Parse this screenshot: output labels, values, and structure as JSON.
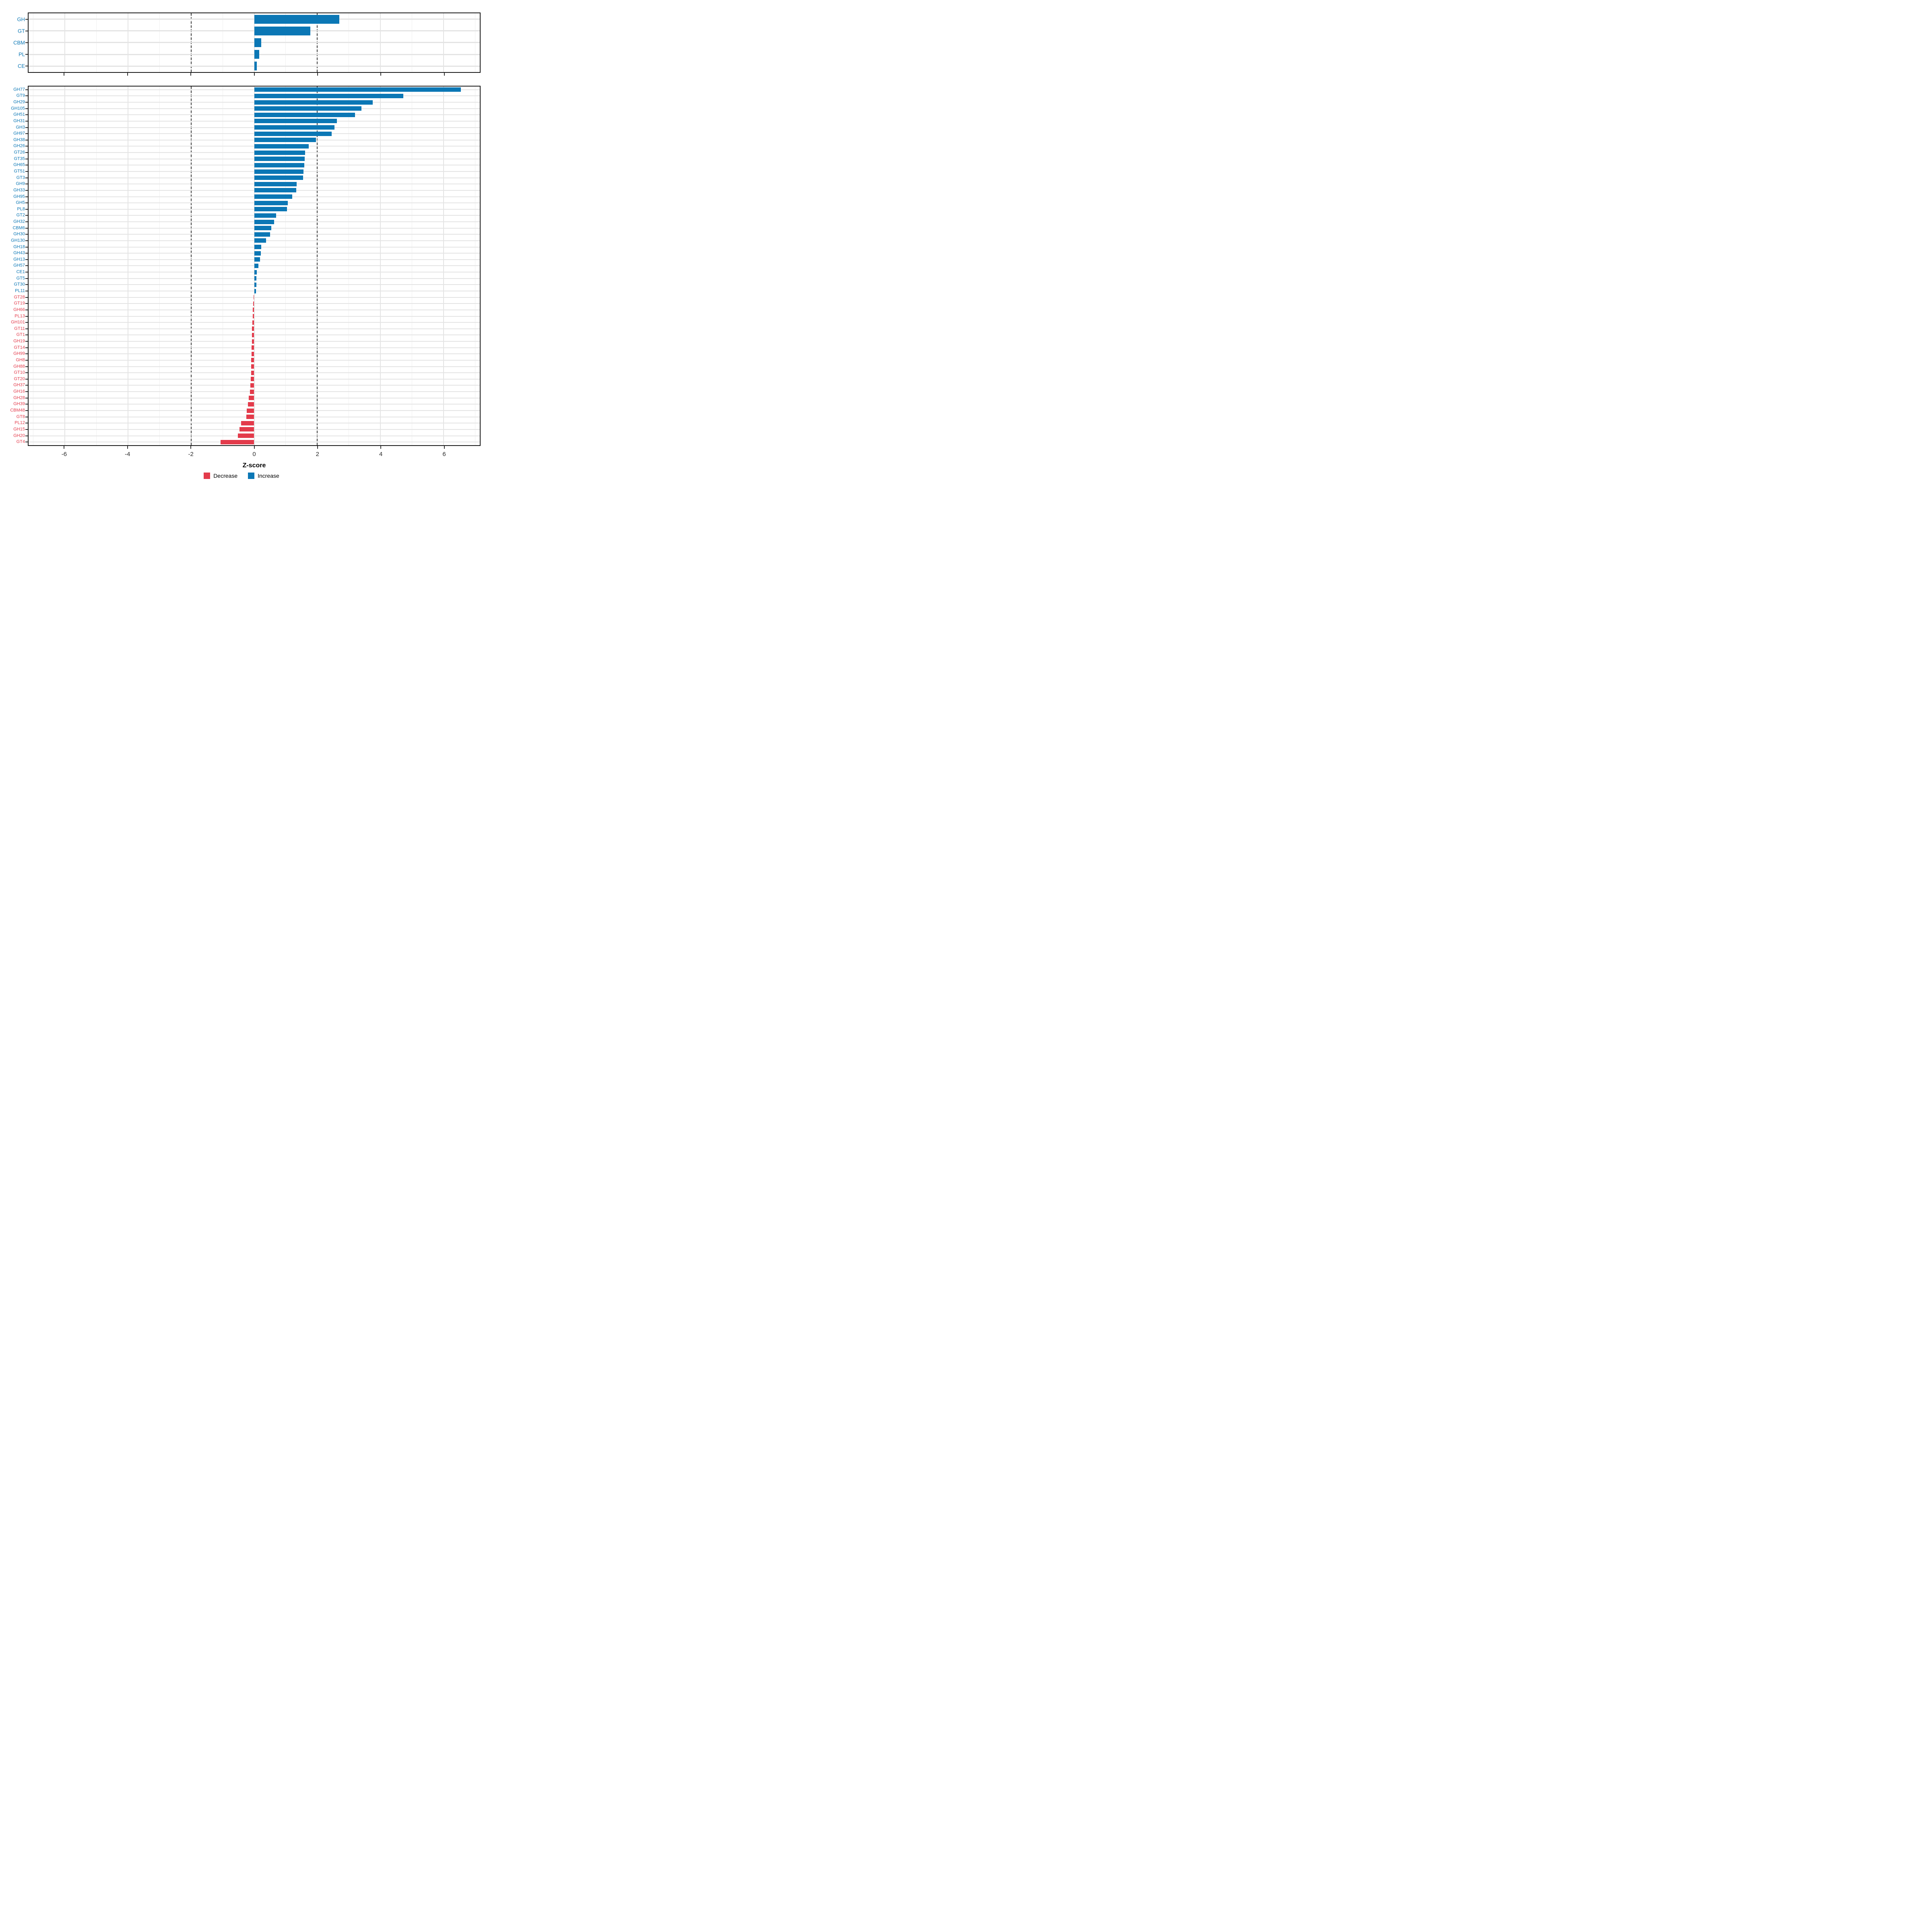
{
  "axis": {
    "xlabel": "Z-score",
    "xlim": [
      -7.15,
      7.15
    ],
    "ticks": [
      -6,
      -4,
      -2,
      0,
      2,
      4,
      6
    ],
    "minor_gridlines": [
      -7,
      -5,
      -3,
      -1,
      1,
      3,
      5,
      7
    ],
    "major_gridlines": [
      -6,
      -4,
      -2,
      0,
      2,
      4,
      6
    ],
    "dashed_lines": [
      -2,
      2
    ]
  },
  "colors": {
    "increase": "#0b77b5",
    "decrease": "#e33b4b",
    "panel_border": "#1a1a1a",
    "grid_major": "#e4e4e4",
    "grid_minor": "#f0f0f0",
    "dashed_line": "#3a3a3a"
  },
  "legend": [
    {
      "label": "Decrease",
      "color": "#e33b4b"
    },
    {
      "label": "Increase",
      "color": "#0b77b5"
    }
  ],
  "chart_data": [
    {
      "type": "bar",
      "orientation": "horizontal",
      "panel": "summary",
      "categories": [
        "GH",
        "GT",
        "CBM",
        "PL",
        "CE"
      ],
      "values": [
        2.7,
        1.78,
        0.22,
        0.16,
        0.08
      ],
      "xlabel": "Z-score",
      "xlim": [
        -7.15,
        7.15
      ],
      "grid": true,
      "legend_position": "none"
    },
    {
      "type": "bar",
      "orientation": "horizontal",
      "panel": "families",
      "categories": [
        "GH77",
        "GT9",
        "GH29",
        "GH105",
        "GH51",
        "GH31",
        "GH3",
        "GH97",
        "GH38",
        "GH26",
        "GT26",
        "GT35",
        "GH65",
        "GT51",
        "GT3",
        "GH9",
        "GH33",
        "GH95",
        "GH5",
        "PL8",
        "GT2",
        "GH32",
        "CBM6",
        "GH30",
        "GH130",
        "GH18",
        "GH43",
        "GH13",
        "GH57",
        "CE1",
        "GT5",
        "GT30",
        "PL11",
        "GT28",
        "GT19",
        "GH66",
        "PL13",
        "GH101",
        "GT11",
        "GT1",
        "GH19",
        "GT14",
        "GH99",
        "GH8",
        "GH88",
        "GT10",
        "GT20",
        "GH37",
        "GH16",
        "GH28",
        "GH39",
        "CBM48",
        "GT8",
        "PL12",
        "GH15",
        "GH20",
        "GT4"
      ],
      "values": [
        6.55,
        4.72,
        3.76,
        3.4,
        3.2,
        2.62,
        2.55,
        2.45,
        1.96,
        1.73,
        1.62,
        1.6,
        1.59,
        1.56,
        1.55,
        1.34,
        1.33,
        1.21,
        1.06,
        1.04,
        0.69,
        0.63,
        0.54,
        0.51,
        0.38,
        0.22,
        0.21,
        0.19,
        0.13,
        0.08,
        0.07,
        0.065,
        0.06,
        -0.02,
        -0.03,
        -0.04,
        -0.05,
        -0.06,
        -0.065,
        -0.07,
        -0.075,
        -0.08,
        -0.085,
        -0.09,
        -0.095,
        -0.1,
        -0.11,
        -0.12,
        -0.14,
        -0.17,
        -0.2,
        -0.23,
        -0.25,
        -0.42,
        -0.46,
        -0.52,
        -1.06
      ],
      "xlabel": "Z-score",
      "xlim": [
        -7.15,
        7.15
      ],
      "grid": true,
      "legend_position": "bottom"
    }
  ]
}
